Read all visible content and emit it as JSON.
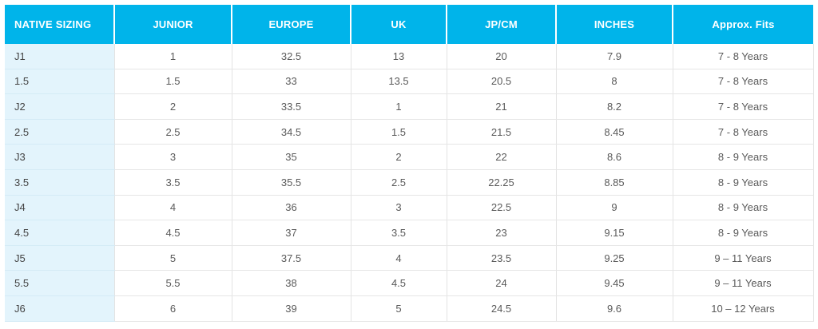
{
  "table": {
    "headers": [
      "NATIVE SIZING",
      "JUNIOR",
      "EUROPE",
      "UK",
      "JP/CM",
      "INCHES",
      "Approx. Fits"
    ],
    "rows": [
      [
        "J1",
        "1",
        "32.5",
        "13",
        "20",
        "7.9",
        "7 - 8 Years"
      ],
      [
        "1.5",
        "1.5",
        "33",
        "13.5",
        "20.5",
        "8",
        "7 - 8 Years"
      ],
      [
        "J2",
        "2",
        "33.5",
        "1",
        "21",
        "8.2",
        "7 - 8 Years"
      ],
      [
        "2.5",
        "2.5",
        "34.5",
        "1.5",
        "21.5",
        "8.45",
        "7 - 8 Years"
      ],
      [
        "J3",
        "3",
        "35",
        "2",
        "22",
        "8.6",
        "8 - 9 Years"
      ],
      [
        "3.5",
        "3.5",
        "35.5",
        "2.5",
        "22.25",
        "8.85",
        "8 - 9 Years"
      ],
      [
        "J4",
        "4",
        "36",
        "3",
        "22.5",
        "9",
        "8 - 9 Years"
      ],
      [
        "4.5",
        "4.5",
        "37",
        "3.5",
        "23",
        "9.15",
        "8 - 9 Years"
      ],
      [
        "J5",
        "5",
        "37.5",
        "4",
        "23.5",
        "9.25",
        "9 – 11 Years"
      ],
      [
        "5.5",
        "5.5",
        "38",
        "4.5",
        "24",
        "9.45",
        "9 – 11 Years"
      ],
      [
        "J6",
        "6",
        "39",
        "5",
        "24.5",
        "9.6",
        "10 – 12 Years"
      ]
    ]
  },
  "colors": {
    "header_bg": "#00b4ea",
    "first_col_bg": "#e3f4fc",
    "text": "#5a5a5a"
  }
}
